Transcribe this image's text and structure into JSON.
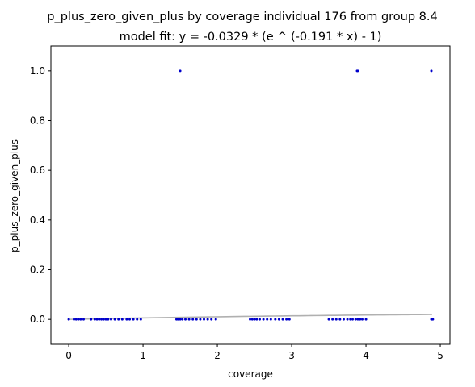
{
  "chart_data": {
    "type": "scatter",
    "title": "p_plus_zero_given_plus by coverage individual 176 from group 8.4",
    "subtitle": "model fit: y = -0.0329 * (e ^ (-0.191 * x) - 1)",
    "xlabel": "coverage",
    "ylabel": "p_plus_zero_given_plus",
    "xlim": [
      -0.24,
      5.13
    ],
    "ylim": [
      -0.1,
      1.1
    ],
    "xticks": [
      0,
      1,
      2,
      3,
      4,
      5
    ],
    "yticks": [
      0.0,
      0.2,
      0.4,
      0.6,
      0.8,
      1.0
    ],
    "xtick_labels": [
      "0",
      "1",
      "2",
      "3",
      "4",
      "5"
    ],
    "ytick_labels": [
      "0.0",
      "0.2",
      "0.4",
      "0.6",
      "0.8",
      "1.0"
    ],
    "grid": false,
    "point_color": "#0000cc",
    "fit_color": "#b0b0b0",
    "fit": {
      "a": -0.0329,
      "b": -0.191,
      "x_range": [
        0,
        4.89
      ]
    },
    "points": [
      {
        "x": 0.0,
        "y": 0
      },
      {
        "x": 0.07,
        "y": 0
      },
      {
        "x": 0.1,
        "y": 0
      },
      {
        "x": 0.13,
        "y": 0
      },
      {
        "x": 0.16,
        "y": 0
      },
      {
        "x": 0.2,
        "y": 0
      },
      {
        "x": 0.3,
        "y": 0
      },
      {
        "x": 0.35,
        "y": 0
      },
      {
        "x": 0.38,
        "y": 0
      },
      {
        "x": 0.41,
        "y": 0
      },
      {
        "x": 0.44,
        "y": 0
      },
      {
        "x": 0.47,
        "y": 0
      },
      {
        "x": 0.5,
        "y": 0
      },
      {
        "x": 0.53,
        "y": 0
      },
      {
        "x": 0.57,
        "y": 0
      },
      {
        "x": 0.62,
        "y": 0
      },
      {
        "x": 0.67,
        "y": 0
      },
      {
        "x": 0.72,
        "y": 0
      },
      {
        "x": 0.78,
        "y": 0
      },
      {
        "x": 0.82,
        "y": 0
      },
      {
        "x": 0.87,
        "y": 0
      },
      {
        "x": 0.92,
        "y": 0
      },
      {
        "x": 0.97,
        "y": 0
      },
      {
        "x": 1.45,
        "y": 0
      },
      {
        "x": 1.47,
        "y": 0
      },
      {
        "x": 1.5,
        "y": 0
      },
      {
        "x": 1.53,
        "y": 0
      },
      {
        "x": 1.57,
        "y": 0
      },
      {
        "x": 1.62,
        "y": 0
      },
      {
        "x": 1.67,
        "y": 0
      },
      {
        "x": 1.72,
        "y": 0
      },
      {
        "x": 1.77,
        "y": 0
      },
      {
        "x": 1.82,
        "y": 0
      },
      {
        "x": 1.87,
        "y": 0
      },
      {
        "x": 1.92,
        "y": 0
      },
      {
        "x": 1.98,
        "y": 0
      },
      {
        "x": 2.44,
        "y": 0
      },
      {
        "x": 2.47,
        "y": 0
      },
      {
        "x": 2.5,
        "y": 0
      },
      {
        "x": 2.53,
        "y": 0
      },
      {
        "x": 2.57,
        "y": 0
      },
      {
        "x": 2.62,
        "y": 0
      },
      {
        "x": 2.67,
        "y": 0
      },
      {
        "x": 2.72,
        "y": 0
      },
      {
        "x": 2.78,
        "y": 0
      },
      {
        "x": 2.83,
        "y": 0
      },
      {
        "x": 2.88,
        "y": 0
      },
      {
        "x": 2.93,
        "y": 0
      },
      {
        "x": 2.97,
        "y": 0
      },
      {
        "x": 3.5,
        "y": 0
      },
      {
        "x": 3.55,
        "y": 0
      },
      {
        "x": 3.6,
        "y": 0
      },
      {
        "x": 3.65,
        "y": 0
      },
      {
        "x": 3.7,
        "y": 0
      },
      {
        "x": 3.75,
        "y": 0
      },
      {
        "x": 3.79,
        "y": 0
      },
      {
        "x": 3.82,
        "y": 0
      },
      {
        "x": 3.86,
        "y": 0
      },
      {
        "x": 3.89,
        "y": 0
      },
      {
        "x": 3.92,
        "y": 0
      },
      {
        "x": 3.95,
        "y": 0
      },
      {
        "x": 4.0,
        "y": 0
      },
      {
        "x": 4.88,
        "y": 0
      },
      {
        "x": 4.89,
        "y": 0
      },
      {
        "x": 4.9,
        "y": 0
      },
      {
        "x": 1.5,
        "y": 1
      },
      {
        "x": 3.88,
        "y": 1
      },
      {
        "x": 3.89,
        "y": 1
      },
      {
        "x": 4.88,
        "y": 1
      }
    ]
  }
}
